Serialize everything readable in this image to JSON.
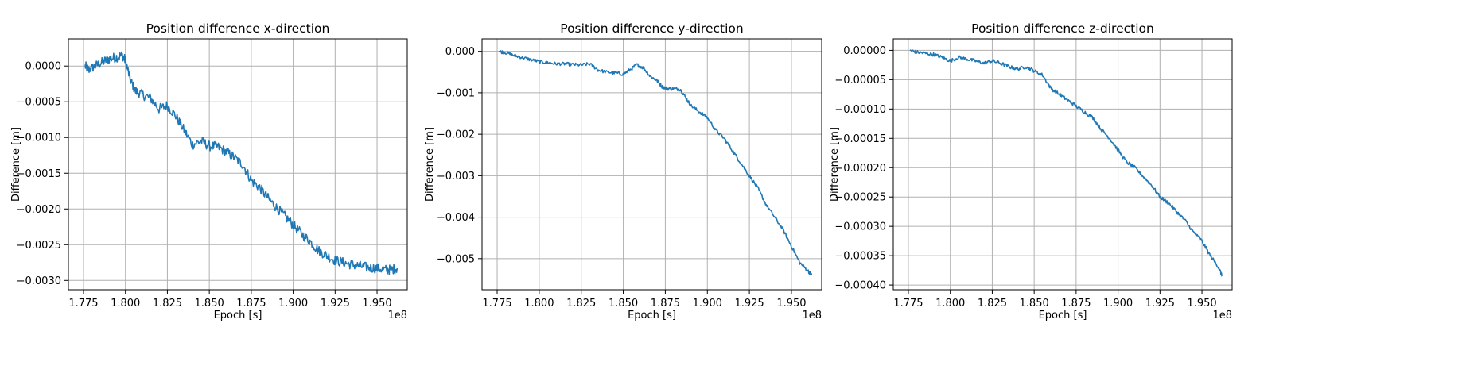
{
  "chart_data": [
    {
      "type": "line",
      "title": "Position difference x-direction",
      "xlabel": "Epoch [s]",
      "ylabel": "Difference [m]",
      "x_multiplier_label": "1e8",
      "xlim": [
        1.766,
        1.968
      ],
      "ylim": [
        -0.00313,
        0.00038
      ],
      "xticks": [
        1.775,
        1.8,
        1.825,
        1.85,
        1.875,
        1.9,
        1.925,
        1.95
      ],
      "xtick_labels": [
        "1.775",
        "1.800",
        "1.825",
        "1.850",
        "1.875",
        "1.900",
        "1.925",
        "1.950"
      ],
      "yticks": [
        0.0,
        -0.0005,
        -0.001,
        -0.0015,
        -0.002,
        -0.0025,
        -0.003
      ],
      "ytick_labels": [
        "0.0000",
        "−0.0005",
        "−0.0010",
        "−0.0015",
        "−0.0020",
        "−0.0025",
        "−0.0030"
      ],
      "grid": true,
      "color": "#1f77b4",
      "noise": 7e-05,
      "x": [
        1.776,
        1.778,
        1.782,
        1.786,
        1.79,
        1.794,
        1.798,
        1.8,
        1.803,
        1.806,
        1.81,
        1.815,
        1.82,
        1.825,
        1.83,
        1.835,
        1.84,
        1.845,
        1.85,
        1.855,
        1.86,
        1.865,
        1.87,
        1.875,
        1.88,
        1.885,
        1.89,
        1.895,
        1.9,
        1.905,
        1.91,
        1.915,
        1.92,
        1.925,
        1.93,
        1.935,
        1.94,
        1.945,
        1.95,
        1.955,
        1.958,
        1.962
      ],
      "y": [
        0.0,
        -5e-05,
        0.0,
        5e-05,
        0.0001,
        0.00012,
        0.00015,
        8e-05,
        -0.0002,
        -0.00035,
        -0.0004,
        -0.00045,
        -0.0006,
        -0.00055,
        -0.0007,
        -0.0009,
        -0.0011,
        -0.00105,
        -0.00112,
        -0.00113,
        -0.0012,
        -0.00128,
        -0.00138,
        -0.0016,
        -0.0017,
        -0.00185,
        -0.00198,
        -0.0021,
        -0.00222,
        -0.00235,
        -0.00245,
        -0.00258,
        -0.00265,
        -0.00272,
        -0.00275,
        -0.00278,
        -0.0028,
        -0.00282,
        -0.00283,
        -0.00285,
        -0.00285,
        -0.00283
      ]
    },
    {
      "type": "line",
      "title": "Position difference y-direction",
      "xlabel": "Epoch [s]",
      "ylabel": "Difference [m]",
      "x_multiplier_label": "1e8",
      "xlim": [
        1.766,
        1.968
      ],
      "ylim": [
        -0.00575,
        0.0003
      ],
      "xticks": [
        1.775,
        1.8,
        1.825,
        1.85,
        1.875,
        1.9,
        1.925,
        1.95
      ],
      "xtick_labels": [
        "1.775",
        "1.800",
        "1.825",
        "1.850",
        "1.875",
        "1.900",
        "1.925",
        "1.950"
      ],
      "yticks": [
        0.0,
        -0.001,
        -0.002,
        -0.003,
        -0.004,
        -0.005
      ],
      "ytick_labels": [
        "0.000",
        "−0.001",
        "−0.002",
        "−0.003",
        "−0.004",
        "−0.005"
      ],
      "grid": true,
      "color": "#1f77b4",
      "noise": 4e-05,
      "x": [
        1.776,
        1.78,
        1.785,
        1.79,
        1.795,
        1.8,
        1.805,
        1.81,
        1.815,
        1.82,
        1.825,
        1.83,
        1.835,
        1.84,
        1.845,
        1.85,
        1.855,
        1.858,
        1.862,
        1.866,
        1.87,
        1.873,
        1.876,
        1.88,
        1.884,
        1.887,
        1.89,
        1.895,
        1.9,
        1.905,
        1.91,
        1.915,
        1.92,
        1.925,
        1.93,
        1.935,
        1.94,
        1.945,
        1.95,
        1.955,
        1.96,
        1.962
      ],
      "y": [
        0.0,
        -3e-05,
        -0.0001,
        -0.00015,
        -0.0002,
        -0.00025,
        -0.00027,
        -0.0003,
        -0.0003,
        -0.00032,
        -0.00033,
        -0.0003,
        -0.00045,
        -0.0005,
        -0.00052,
        -0.00055,
        -0.00042,
        -0.00032,
        -0.0004,
        -0.0006,
        -0.0007,
        -0.00085,
        -0.0009,
        -0.0009,
        -0.00092,
        -0.0011,
        -0.0013,
        -0.00145,
        -0.0016,
        -0.0019,
        -0.0021,
        -0.0024,
        -0.0027,
        -0.003,
        -0.0033,
        -0.0037,
        -0.004,
        -0.0043,
        -0.0047,
        -0.0051,
        -0.0053,
        -0.0054
      ]
    },
    {
      "type": "line",
      "title": "Position difference z-direction",
      "xlabel": "Epoch [s]",
      "ylabel": "Difference [m]",
      "x_multiplier_label": "1e8",
      "xlim": [
        1.766,
        1.968
      ],
      "ylim": [
        -0.000408,
        1.95e-05
      ],
      "xticks": [
        1.775,
        1.8,
        1.825,
        1.85,
        1.875,
        1.9,
        1.925,
        1.95
      ],
      "xtick_labels": [
        "1.775",
        "1.800",
        "1.825",
        "1.850",
        "1.875",
        "1.900",
        "1.925",
        "1.950"
      ],
      "yticks": [
        0.0,
        -5e-05,
        -0.0001,
        -0.00015,
        -0.0002,
        -0.00025,
        -0.0003,
        -0.00035,
        -0.0004
      ],
      "ytick_labels": [
        "0.00000",
        "−0.00005",
        "−0.00010",
        "−0.00015",
        "−0.00020",
        "−0.00025",
        "−0.00030",
        "−0.00035",
        "−0.00040"
      ],
      "grid": true,
      "color": "#1f77b4",
      "noise": 3e-06,
      "x": [
        1.776,
        1.78,
        1.785,
        1.79,
        1.795,
        1.8,
        1.805,
        1.81,
        1.815,
        1.82,
        1.825,
        1.83,
        1.835,
        1.84,
        1.845,
        1.85,
        1.855,
        1.86,
        1.865,
        1.87,
        1.875,
        1.88,
        1.885,
        1.89,
        1.895,
        1.9,
        1.905,
        1.91,
        1.915,
        1.92,
        1.925,
        1.93,
        1.935,
        1.94,
        1.945,
        1.95,
        1.955,
        1.96,
        1.962
      ],
      "y": [
        0.0,
        -3e-06,
        -5e-06,
        -7e-06,
        -1.2e-05,
        -1.8e-05,
        -1.2e-05,
        -1.5e-05,
        -1.8e-05,
        -2.2e-05,
        -1.8e-05,
        -2.2e-05,
        -2.8e-05,
        -3.2e-05,
        -2.8e-05,
        -3.5e-05,
        -4.2e-05,
        -6.5e-05,
        -7.5e-05,
        -8.5e-05,
        -9.5e-05,
        -0.000105,
        -0.000115,
        -0.000135,
        -0.00015,
        -0.00017,
        -0.00019,
        -0.0002,
        -0.000215,
        -0.00023,
        -0.00025,
        -0.00026,
        -0.000275,
        -0.00029,
        -0.00031,
        -0.000325,
        -0.00035,
        -0.00037,
        -0.000385
      ]
    }
  ]
}
